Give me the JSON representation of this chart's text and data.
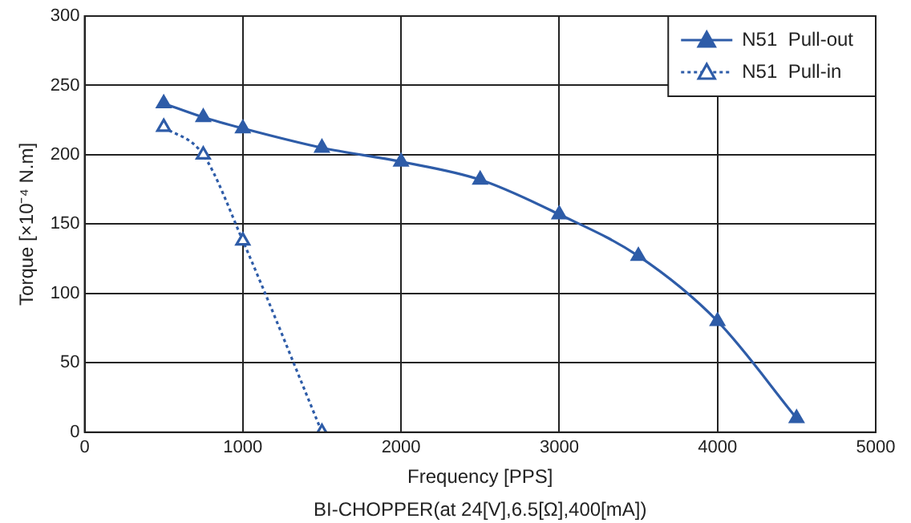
{
  "chart_data": {
    "type": "line",
    "xlabel": "Frequency [PPS]",
    "ylabel": "Torque [×10⁻⁴ N.m]",
    "annotations": [
      "BI-CHOPPER(at 24[V],6.5[Ω],400[mA])"
    ],
    "xlim": [
      0,
      5000
    ],
    "xticks": [
      0,
      1000,
      2000,
      3000,
      4000,
      5000
    ],
    "ylim": [
      0,
      300
    ],
    "yticks": [
      0,
      50,
      100,
      150,
      200,
      250,
      300
    ],
    "grid": true,
    "legend": "top right",
    "marker": "triangle",
    "series": [
      {
        "name": "N51  Pull-out",
        "color": "#2e5ca8",
        "line_style": "solid",
        "x": [
          500,
          750,
          1000,
          1500,
          2000,
          2500,
          3000,
          3500,
          4000,
          4500
        ],
        "values": [
          237,
          227,
          219,
          205,
          195,
          182,
          157,
          127,
          80,
          10
        ]
      },
      {
        "name": "N51  Pull-in",
        "color": "#2e5ca8",
        "line_style": "dotted",
        "x": [
          500,
          750,
          1000,
          1500
        ],
        "values": [
          220,
          200,
          138,
          0
        ]
      }
    ]
  }
}
